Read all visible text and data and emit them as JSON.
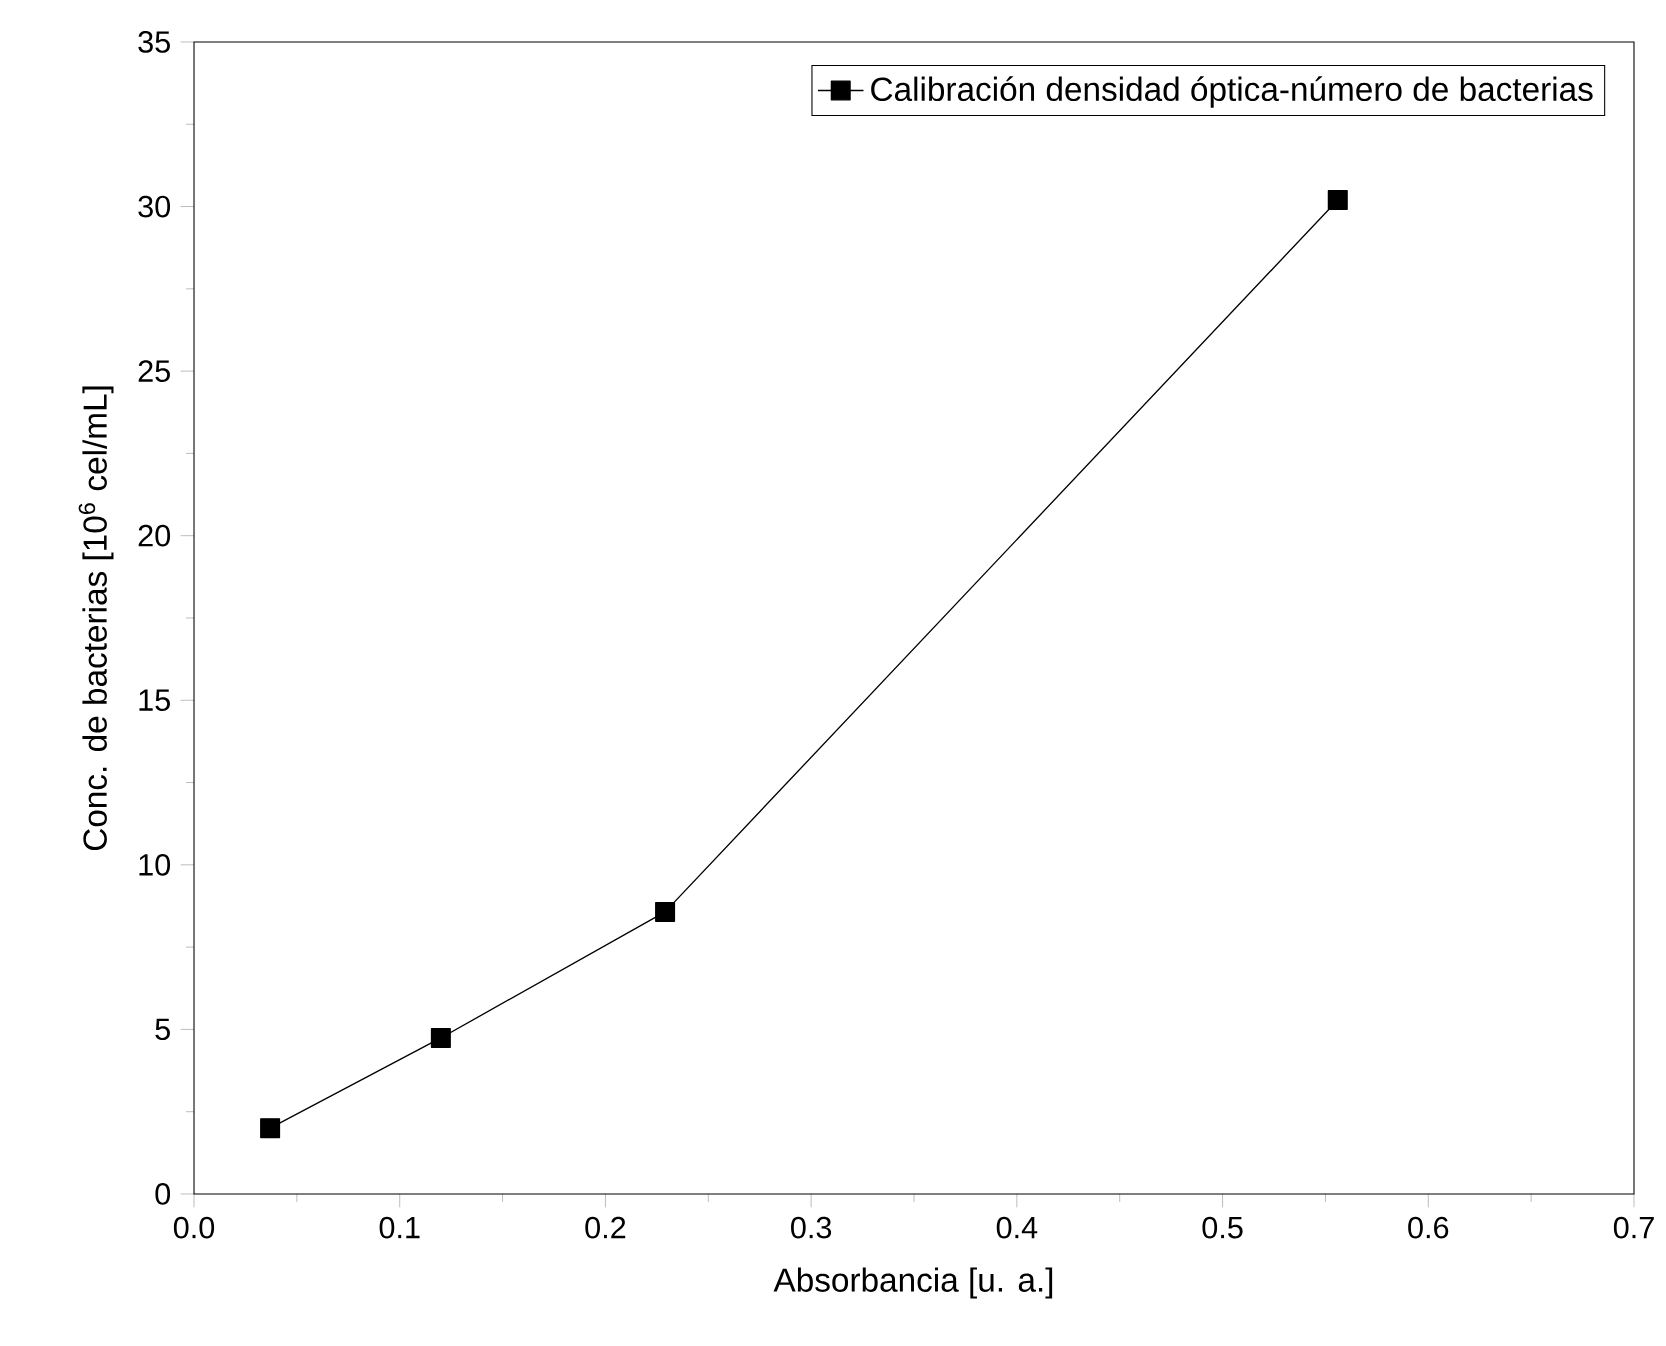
{
  "chart_data": {
    "type": "line",
    "xlabel": "Absorbancia [u. a.]",
    "ylabel": "Conc. de bacterias [10$^{6}$ cel/mL]",
    "x": [
      0.037,
      0.12,
      0.229,
      0.556
    ],
    "series": [
      {
        "name": "Calibración densidad óptica-número de bacterias",
        "color": "#000000",
        "values": [
          2.0,
          4.74,
          8.57,
          30.2
        ]
      }
    ],
    "xlim": [
      0,
      0.7
    ],
    "ylim": [
      0,
      35
    ],
    "xticks": [
      {
        "value": 0,
        "label": "0.0"
      },
      {
        "value": 0.1,
        "label": "0.1"
      },
      {
        "value": 0.2,
        "label": "0.2"
      },
      {
        "value": 0.3,
        "label": "0.3"
      },
      {
        "value": 0.4,
        "label": "0.4"
      },
      {
        "value": 0.5,
        "label": "0.5"
      },
      {
        "value": 0.6,
        "label": "0.6"
      },
      {
        "value": 0.7,
        "label": "0.7"
      }
    ],
    "yticks": [
      0,
      5,
      10,
      15,
      20,
      25,
      30,
      35
    ],
    "marker": "square",
    "line_style": "solid",
    "legend": "top right"
  }
}
